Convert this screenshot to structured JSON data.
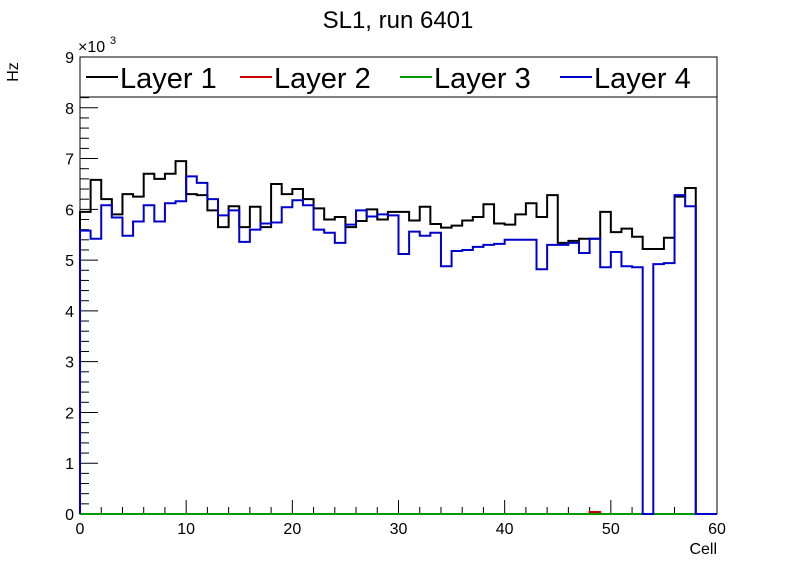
{
  "chart_data": {
    "type": "line",
    "title": "SL1, run 6401",
    "xlabel": "Cell",
    "ylabel": "Hz",
    "y_multiplier": "×10",
    "y_multiplier_exp": "3",
    "xlim": [
      0,
      60
    ],
    "ylim": [
      0,
      9000
    ],
    "x_ticks": [
      0,
      10,
      20,
      30,
      40,
      50,
      60
    ],
    "y_ticks": [
      0,
      1000,
      2000,
      3000,
      4000,
      5000,
      6000,
      7000,
      8000,
      9000
    ],
    "y_tick_labels": [
      "0",
      "1",
      "2",
      "3",
      "4",
      "5",
      "6",
      "7",
      "8",
      "9"
    ],
    "x_tick_labels": [
      "0",
      "10",
      "20",
      "30",
      "40",
      "50",
      "60"
    ],
    "grid": false,
    "legend_position": "top",
    "bin_width": 1,
    "bin_start": 0,
    "series": [
      {
        "name": "Layer 1",
        "color": "#000000",
        "values": [
          5950,
          6580,
          6200,
          5900,
          6300,
          6250,
          6700,
          6600,
          6700,
          6950,
          6300,
          6280,
          5980,
          5650,
          6060,
          5650,
          6050,
          5650,
          6500,
          6300,
          6400,
          6200,
          6020,
          5800,
          5850,
          5650,
          5770,
          6000,
          5800,
          5950,
          5950,
          5780,
          6050,
          5710,
          5640,
          5680,
          5780,
          5850,
          6100,
          5720,
          5700,
          5900,
          6120,
          5850,
          6280,
          5340,
          5380,
          5420,
          5420,
          5950,
          5550,
          5620,
          5460,
          5220,
          5220,
          5440,
          6250,
          6420,
          0,
          0
        ]
      },
      {
        "name": "Layer 2",
        "color": "#cc0000",
        "values": [
          0,
          0,
          0,
          0,
          0,
          0,
          0,
          0,
          0,
          0,
          0,
          0,
          0,
          0,
          0,
          0,
          0,
          0,
          0,
          0,
          0,
          0,
          0,
          0,
          0,
          0,
          0,
          0,
          0,
          0,
          0,
          0,
          0,
          0,
          0,
          0,
          0,
          0,
          0,
          0,
          0,
          0,
          0,
          0,
          0,
          0,
          0,
          0,
          40,
          0,
          0,
          0,
          0,
          0,
          0,
          0,
          0,
          0,
          0,
          0
        ]
      },
      {
        "name": "Layer 3",
        "color": "#009900",
        "values": [
          0,
          0,
          0,
          0,
          0,
          0,
          0,
          0,
          0,
          0,
          0,
          0,
          0,
          0,
          0,
          0,
          0,
          0,
          0,
          0,
          0,
          0,
          0,
          0,
          0,
          0,
          0,
          0,
          0,
          0,
          0,
          0,
          0,
          0,
          0,
          0,
          0,
          0,
          0,
          0,
          0,
          0,
          0,
          0,
          0,
          0,
          0,
          0,
          0,
          0,
          0,
          0,
          0,
          0,
          0,
          0,
          0,
          0,
          0,
          0
        ]
      },
      {
        "name": "Layer 4",
        "color": "#0000cc",
        "values": [
          5580,
          5420,
          6080,
          5840,
          5480,
          5760,
          6080,
          5760,
          6120,
          6160,
          6650,
          6520,
          6200,
          5880,
          5980,
          5360,
          5600,
          5720,
          5740,
          6040,
          6180,
          6080,
          5600,
          5540,
          5340,
          5700,
          5980,
          5860,
          5900,
          5880,
          5120,
          5560,
          5480,
          5540,
          4880,
          5180,
          5200,
          5260,
          5300,
          5320,
          5400,
          5400,
          5400,
          4820,
          5300,
          5300,
          5340,
          5140,
          5420,
          4860,
          5160,
          4880,
          4860,
          0,
          4920,
          4940,
          6280,
          6060,
          0,
          0
        ]
      }
    ]
  }
}
